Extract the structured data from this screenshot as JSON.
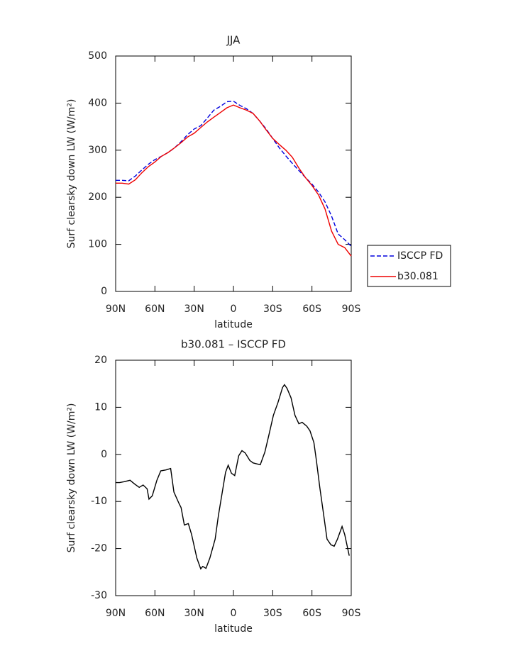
{
  "chart_data": [
    {
      "type": "line",
      "title": "JJA",
      "xlabel": "latitude",
      "ylabel": "Surf clearsky down LW (W/m²)",
      "xlim": [
        90,
        -90
      ],
      "xticks": [
        {
          "value": 90,
          "label": "90N"
        },
        {
          "value": 60,
          "label": "60N"
        },
        {
          "value": 30,
          "label": "30N"
        },
        0,
        {
          "value": -30,
          "label": "30S"
        },
        {
          "value": -60,
          "label": "60S"
        },
        {
          "value": -90,
          "label": "90S"
        }
      ],
      "ylim": [
        0,
        500
      ],
      "yticks": [
        0,
        100,
        200,
        300,
        400,
        500
      ],
      "x": [
        90,
        85,
        80,
        75,
        70,
        65,
        60,
        55,
        50,
        45,
        40,
        35,
        30,
        25,
        20,
        15,
        10,
        5,
        0,
        -5,
        -10,
        -15,
        -20,
        -25,
        -30,
        -35,
        -40,
        -45,
        -50,
        -55,
        -60,
        -65,
        -70,
        -75,
        -80,
        -85,
        -90
      ],
      "legend": "right",
      "series": [
        {
          "name": "ISCCP FD",
          "color": "#0000dd",
          "dash": true,
          "values": [
            236,
            236,
            235,
            245,
            258,
            270,
            280,
            287,
            295,
            305,
            318,
            333,
            345,
            352,
            368,
            385,
            393,
            403,
            404,
            395,
            388,
            378,
            362,
            345,
            325,
            305,
            288,
            272,
            257,
            242,
            228,
            211,
            190,
            160,
            122,
            110,
            96
          ]
        },
        {
          "name": "b30.081",
          "color": "#ee0000",
          "dash": false,
          "values": [
            230,
            230,
            228,
            237,
            252,
            265,
            275,
            287,
            295,
            305,
            316,
            328,
            336,
            348,
            360,
            370,
            380,
            390,
            396,
            390,
            385,
            378,
            362,
            343,
            325,
            312,
            300,
            285,
            262,
            242,
            225,
            205,
            175,
            128,
            100,
            93,
            75
          ]
        }
      ]
    },
    {
      "type": "line",
      "title": "b30.081 – ISCCP FD",
      "xlabel": "latitude",
      "ylabel": "Surf clearsky down LW (W/m²)",
      "xlim": [
        90,
        -90
      ],
      "xticks": [
        {
          "value": 90,
          "label": "90N"
        },
        {
          "value": 60,
          "label": "60N"
        },
        {
          "value": 30,
          "label": "30N"
        },
        0,
        {
          "value": -30,
          "label": "30S"
        },
        {
          "value": -60,
          "label": "60S"
        },
        {
          "value": -90,
          "label": "90S"
        }
      ],
      "ylim": [
        -30,
        20
      ],
      "yticks": [
        -30,
        -20,
        -10,
        0,
        10,
        20
      ],
      "x": [
        90,
        87,
        83.5,
        79,
        75.5,
        72,
        69,
        66,
        64.5,
        62,
        58.5,
        55.5,
        51.5,
        48,
        45.5,
        41.5,
        40,
        37.5,
        34.5,
        32,
        28,
        25,
        23.5,
        21,
        18,
        14,
        11.5,
        8.5,
        6,
        4,
        1.5,
        -1,
        -4,
        -6.5,
        -9,
        -12.5,
        -15,
        -20.5,
        -24,
        -27,
        -30.5,
        -34,
        -37.5,
        -39,
        -41,
        -44,
        -47,
        -50,
        -52.5,
        -56,
        -58.5,
        -61.5,
        -63.5,
        -66,
        -69,
        -71.5,
        -74.5,
        -77,
        -79.5,
        -83,
        -85,
        -88.5
      ],
      "values": [
        -6,
        -6,
        -5.8,
        -5.5,
        -6.3,
        -7,
        -6.5,
        -7.3,
        -9.5,
        -8.8,
        -5.5,
        -3.5,
        -3.3,
        -3,
        -8,
        -10.5,
        -11.3,
        -15,
        -14.7,
        -17,
        -22,
        -24.3,
        -23.8,
        -24.2,
        -22,
        -18,
        -13,
        -8,
        -3.8,
        -2.3,
        -4,
        -4.5,
        -0.3,
        0.8,
        0.3,
        -1.3,
        -1.8,
        -2.2,
        0.5,
        4,
        8.3,
        11,
        14.2,
        14.8,
        14,
        12,
        8.3,
        6.5,
        6.8,
        6,
        5,
        2.5,
        -1.5,
        -7,
        -13,
        -18,
        -19.2,
        -19.5,
        -18,
        -15.3,
        -17,
        -21.5
      ],
      "color": "#000000"
    }
  ]
}
